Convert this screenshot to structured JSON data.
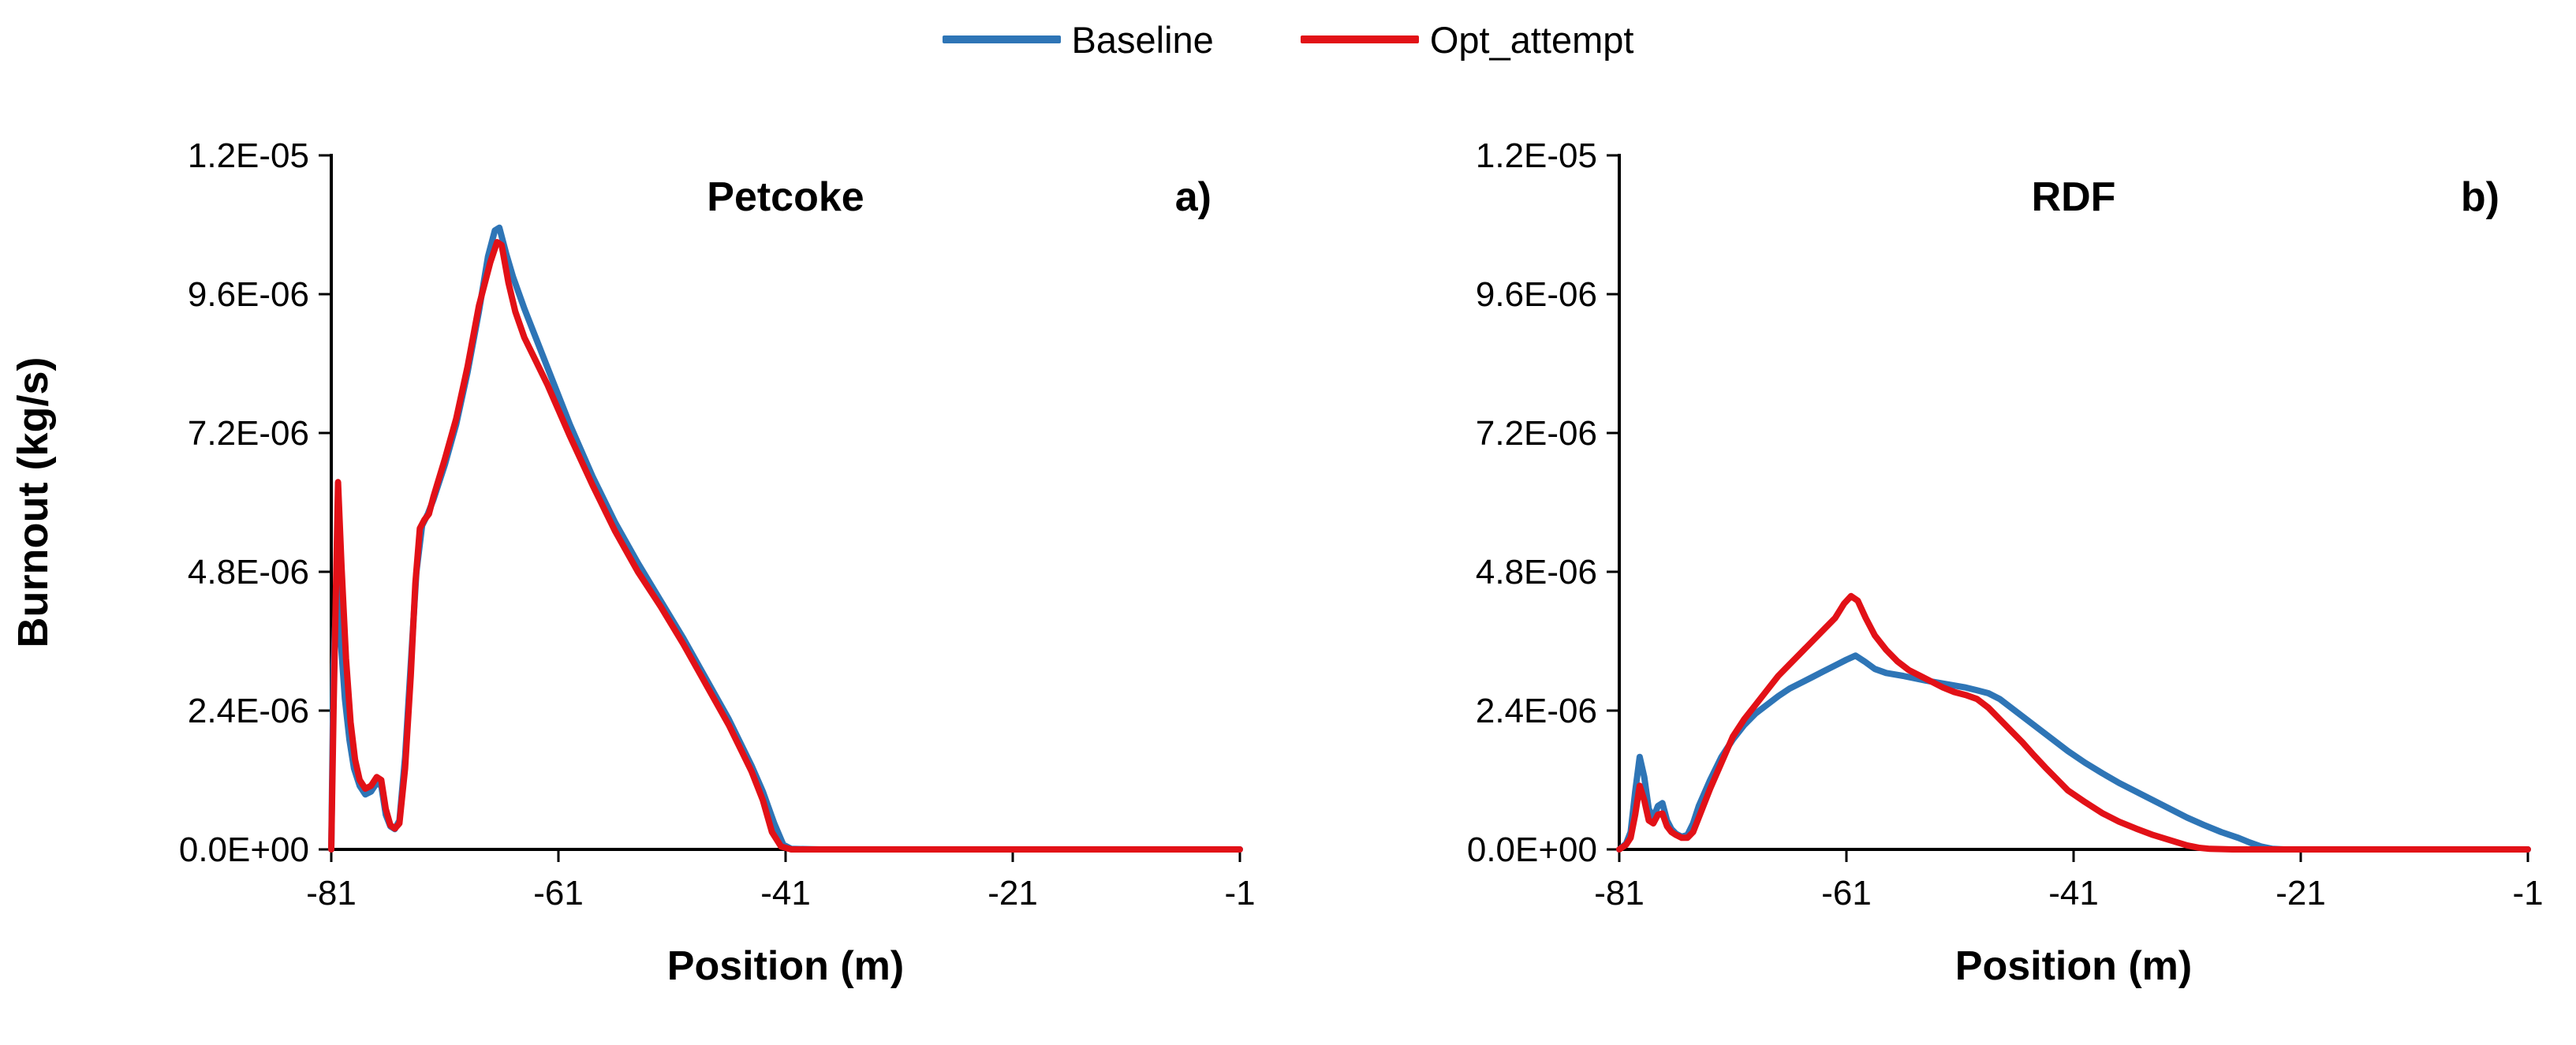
{
  "legend": {
    "items": [
      {
        "label": "Baseline",
        "color": "#2E75B6"
      },
      {
        "label": "Opt_attempt",
        "color": "#E21117"
      }
    ]
  },
  "axis_color": "#000000",
  "chart_data": [
    {
      "type": "line",
      "title": "Petcoke",
      "corner_label": "a)",
      "xlabel": "Position (m)",
      "ylabel": "Burnout (kg/s)",
      "xlim": [
        -81,
        -1
      ],
      "ylim": [
        0,
        1.2e-05
      ],
      "xticks": [
        -81,
        -61,
        -41,
        -21,
        -1
      ],
      "xtick_labels": [
        "-81",
        "-61",
        "-41",
        "-21",
        "-1"
      ],
      "yticks": [
        0,
        2.4e-06,
        4.8e-06,
        7.2e-06,
        9.6e-06,
        1.2e-05
      ],
      "ytick_labels": [
        "0.0E+00",
        "2.4E-06",
        "4.8E-06",
        "7.2E-06",
        "9.6E-06",
        "1.2E-05"
      ],
      "grid": false,
      "legend_position": "top-center-shared",
      "series": [
        {
          "name": "Baseline",
          "color": "#2E75B6",
          "x": [
            -81,
            -80.8,
            -80.5,
            -80.2,
            -79.8,
            -79.4,
            -79,
            -78.5,
            -78,
            -77.5,
            -77,
            -76.6,
            -76.2,
            -75.8,
            -75.4,
            -75,
            -74.5,
            -74,
            -73.5,
            -73,
            -72.5,
            -72,
            -71,
            -70,
            -69,
            -68,
            -67.2,
            -66.6,
            -66.2,
            -65.6,
            -65,
            -64,
            -63,
            -62,
            -61,
            -60,
            -58,
            -56,
            -54,
            -52,
            -50,
            -48,
            -46,
            -44,
            -43,
            -42,
            -41.2,
            -40.5,
            -38,
            -35,
            -30,
            -25,
            -20,
            -15,
            -10,
            -5,
            -1
          ],
          "y": [
            0,
            3.2e-06,
            4.6e-06,
            3.7e-06,
            2.6e-06,
            1.9e-06,
            1.4e-06,
            1.1e-06,
            9.5e-07,
            1e-06,
            1.15e-06,
            1.1e-06,
            6e-07,
            4e-07,
            3.5e-07,
            5e-07,
            1.6e-06,
            3.2e-06,
            4.8e-06,
            5.6e-06,
            5.8e-06,
            6.05e-06,
            6.65e-06,
            7.35e-06,
            8.25e-06,
            9.3e-06,
            1.025e-05,
            1.07e-05,
            1.075e-05,
            1.03e-05,
            9.9e-06,
            9.35e-06,
            8.85e-06,
            8.35e-06,
            7.85e-06,
            7.35e-06,
            6.45e-06,
            5.65e-06,
            4.95e-06,
            4.3e-06,
            3.65e-06,
            2.95e-06,
            2.25e-06,
            1.45e-06,
            1e-06,
            4.5e-07,
            8e-08,
            1e-08,
            0,
            0,
            0,
            0,
            0,
            0,
            0,
            0,
            0
          ]
        },
        {
          "name": "Opt_attempt",
          "color": "#E21117",
          "x": [
            -81,
            -80.8,
            -80.4,
            -80.1,
            -79.7,
            -79.3,
            -78.9,
            -78.5,
            -78,
            -77.5,
            -77,
            -76.6,
            -76.2,
            -75.8,
            -75.4,
            -75,
            -74.5,
            -74,
            -73.6,
            -73.2,
            -72.8,
            -72.4,
            -72,
            -71,
            -70,
            -69,
            -68,
            -67,
            -66.4,
            -66,
            -65.4,
            -64.8,
            -64,
            -63,
            -62,
            -61,
            -60,
            -58,
            -56,
            -54,
            -52,
            -50,
            -48,
            -46,
            -44,
            -43,
            -42.2,
            -41.4,
            -40.5,
            -38,
            -35,
            -30,
            -25,
            -20,
            -15,
            -10,
            -5,
            -1
          ],
          "y": [
            0,
            2.4e-06,
            6.35e-06,
            4.9e-06,
            3.3e-06,
            2.2e-06,
            1.55e-06,
            1.2e-06,
            1.05e-06,
            1.1e-06,
            1.25e-06,
            1.2e-06,
            7e-07,
            4.2e-07,
            3.6e-07,
            4.5e-07,
            1.4e-06,
            3e-06,
            4.6e-06,
            5.55e-06,
            5.7e-06,
            5.8e-06,
            6.1e-06,
            6.75e-06,
            7.45e-06,
            8.35e-06,
            9.4e-06,
            1.015e-05,
            1.05e-05,
            1.045e-05,
            9.8e-06,
            9.3e-06,
            8.85e-06,
            8.45e-06,
            8.05e-06,
            7.6e-06,
            7.15e-06,
            6.3e-06,
            5.5e-06,
            4.8e-06,
            4.2e-06,
            3.55e-06,
            2.85e-06,
            2.15e-06,
            1.35e-06,
            8.5e-07,
            3e-07,
            5e-08,
            0,
            0,
            0,
            0,
            0,
            0,
            0,
            0,
            0,
            0
          ]
        }
      ]
    },
    {
      "type": "line",
      "title": "RDF",
      "corner_label": "b)",
      "xlabel": "Position (m)",
      "ylabel": "",
      "xlim": [
        -81,
        -1
      ],
      "ylim": [
        0,
        1.2e-05
      ],
      "xticks": [
        -81,
        -61,
        -41,
        -21,
        -1
      ],
      "xtick_labels": [
        "-81",
        "-61",
        "-41",
        "-21",
        "-1"
      ],
      "yticks": [
        0,
        2.4e-06,
        4.8e-06,
        7.2e-06,
        9.6e-06,
        1.2e-05
      ],
      "ytick_labels": [
        "0.0E+00",
        "2.4E-06",
        "4.8E-06",
        "7.2E-06",
        "9.6E-06",
        "1.2E-05"
      ],
      "grid": false,
      "legend_position": "top-center-shared",
      "series": [
        {
          "name": "Baseline",
          "color": "#2E75B6",
          "x": [
            -81,
            -80.4,
            -80,
            -79.6,
            -79.2,
            -78.8,
            -78.4,
            -78,
            -77.6,
            -77.2,
            -76.8,
            -76.4,
            -76,
            -75.5,
            -75,
            -74.5,
            -74,
            -73,
            -72,
            -71,
            -70,
            -69,
            -68,
            -67,
            -66,
            -65,
            -64,
            -63,
            -62,
            -61,
            -60.2,
            -59.4,
            -58.5,
            -57.5,
            -56,
            -54,
            -52,
            -50.5,
            -49.5,
            -48.5,
            -47.5,
            -46.5,
            -45.5,
            -44.5,
            -43.5,
            -42.5,
            -41.5,
            -40,
            -38.5,
            -37,
            -35.5,
            -34,
            -32.5,
            -31,
            -29.5,
            -28,
            -26.5,
            -25.5,
            -24.5,
            -23.5,
            -22.5,
            -20,
            -15,
            -10,
            -5,
            -1
          ],
          "y": [
            0,
            1e-07,
            3e-07,
            1e-06,
            1.6e-06,
            1.25e-06,
            7e-07,
            5.5e-07,
            7.5e-07,
            8e-07,
            5e-07,
            3.5e-07,
            2.7e-07,
            2.2e-07,
            2.5e-07,
            4.5e-07,
            7.5e-07,
            1.2e-06,
            1.6e-06,
            1.9e-06,
            2.15e-06,
            2.35e-06,
            2.5e-06,
            2.65e-06,
            2.78e-06,
            2.88e-06,
            2.98e-06,
            3.08e-06,
            3.18e-06,
            3.28e-06,
            3.35e-06,
            3.25e-06,
            3.12e-06,
            3.05e-06,
            3e-06,
            2.92e-06,
            2.85e-06,
            2.8e-06,
            2.75e-06,
            2.7e-06,
            2.6e-06,
            2.45e-06,
            2.3e-06,
            2.15e-06,
            2e-06,
            1.85e-06,
            1.7e-06,
            1.5e-06,
            1.32e-06,
            1.15e-06,
            1e-06,
            8.5e-07,
            7e-07,
            5.5e-07,
            4.2e-07,
            3e-07,
            2e-07,
            1.2e-07,
            5e-08,
            1e-08,
            0,
            0,
            0,
            0,
            0,
            0
          ]
        },
        {
          "name": "Opt_attempt",
          "color": "#E21117",
          "x": [
            -81,
            -80.4,
            -80,
            -79.6,
            -79.2,
            -78.8,
            -78.4,
            -78,
            -77.6,
            -77.2,
            -76.8,
            -76.4,
            -76,
            -75.5,
            -75,
            -74.5,
            -74,
            -73,
            -72,
            -71,
            -70,
            -69,
            -68,
            -67,
            -66,
            -65,
            -64,
            -63,
            -62,
            -61.2,
            -60.6,
            -60,
            -59.3,
            -58.5,
            -57.5,
            -56.5,
            -55.5,
            -54.5,
            -53.5,
            -52.5,
            -51.5,
            -50.5,
            -49.5,
            -48.5,
            -47.5,
            -46.5,
            -45.5,
            -44.5,
            -43.5,
            -42.5,
            -41.5,
            -40,
            -38.5,
            -37,
            -35.5,
            -34,
            -32.5,
            -31,
            -30,
            -29,
            -27,
            -25,
            -20,
            -15,
            -10,
            -5,
            -1
          ],
          "y": [
            0,
            8e-08,
            2e-07,
            6e-07,
            1.1e-06,
            8.5e-07,
            5e-07,
            4.5e-07,
            6e-07,
            6.2e-07,
            4e-07,
            3e-07,
            2.5e-07,
            2e-07,
            2e-07,
            3e-07,
            5.5e-07,
            1.05e-06,
            1.5e-06,
            1.95e-06,
            2.25e-06,
            2.5e-06,
            2.75e-06,
            3e-06,
            3.2e-06,
            3.4e-06,
            3.6e-06,
            3.8e-06,
            4e-06,
            4.25e-06,
            4.38e-06,
            4.3e-06,
            4e-06,
            3.7e-06,
            3.45e-06,
            3.25e-06,
            3.1e-06,
            3e-06,
            2.9e-06,
            2.8e-06,
            2.72e-06,
            2.67e-06,
            2.6e-06,
            2.45e-06,
            2.25e-06,
            2.05e-06,
            1.85e-06,
            1.63e-06,
            1.42e-06,
            1.22e-06,
            1.02e-06,
            8.2e-07,
            6.3e-07,
            4.8e-07,
            3.6e-07,
            2.5e-07,
            1.6e-07,
            7e-08,
            3e-08,
            1e-08,
            0,
            0,
            0,
            0,
            0,
            0,
            0
          ]
        }
      ]
    }
  ]
}
